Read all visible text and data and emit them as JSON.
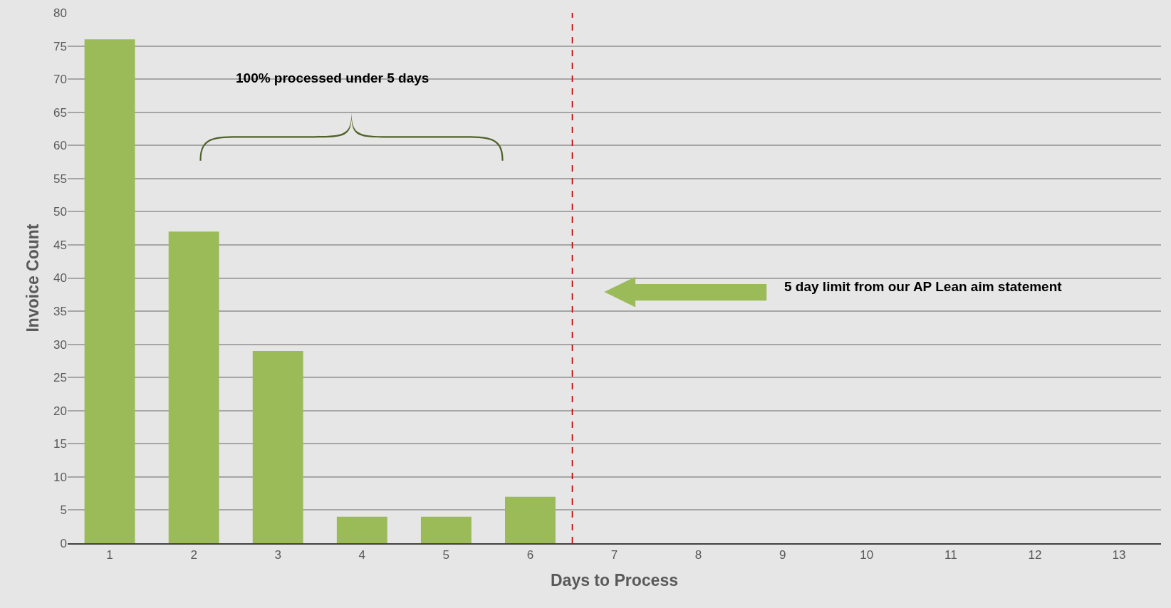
{
  "chart_data": {
    "type": "bar",
    "xlabel": "Days to Process",
    "ylabel": "Invoice Count",
    "x": [
      1,
      2,
      3,
      4,
      5,
      6,
      7,
      8,
      9,
      10,
      11,
      12,
      13
    ],
    "values": [
      76,
      47,
      29,
      4,
      4,
      7,
      0,
      0,
      0,
      0,
      0,
      0,
      0
    ],
    "color": "#9bbb59",
    "xlim": [
      0.5,
      13.5
    ],
    "xticks": [
      1,
      2,
      3,
      4,
      5,
      6,
      7,
      8,
      9,
      10,
      11,
      12,
      13
    ],
    "ylim": [
      0,
      80
    ],
    "yticks": [
      0,
      5,
      10,
      15,
      20,
      25,
      30,
      35,
      40,
      45,
      50,
      55,
      60,
      65,
      70,
      75,
      80
    ],
    "grid": "y",
    "ref_lines": [
      {
        "axis": "x",
        "value": 6.5,
        "color": "#c00000",
        "line_style": "dashed"
      }
    ],
    "annotations": [
      "100% processed under 5 days",
      "5 day limit from our AP Lean aim statement"
    ]
  }
}
